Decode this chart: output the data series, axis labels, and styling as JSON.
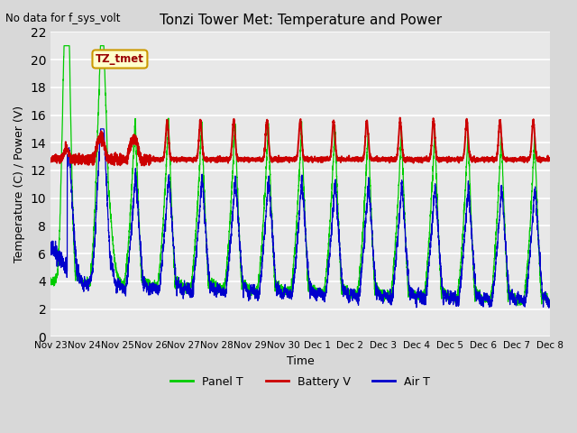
{
  "title": "Tonzi Tower Met: Temperature and Power",
  "no_data_text": "No data for f_sys_volt",
  "annotation_text": "TZ_tmet",
  "xlabel": "Time",
  "ylabel": "Temperature (C) / Power (V)",
  "ylim": [
    0,
    22
  ],
  "yticks": [
    0,
    2,
    4,
    6,
    8,
    10,
    12,
    14,
    16,
    18,
    20,
    22
  ],
  "xtick_labels": [
    "Nov 23",
    "Nov 24",
    "Nov 25",
    "Nov 26",
    "Nov 27",
    "Nov 28",
    "Nov 29",
    "Nov 30",
    "Dec 1",
    "Dec 2",
    "Dec 3",
    "Dec 4",
    "Dec 5",
    "Dec 6",
    "Dec 7",
    "Dec 8"
  ],
  "panel_color": "#00cc00",
  "battery_color": "#cc0000",
  "air_color": "#0000cc",
  "legend_labels": [
    "Panel T",
    "Battery V",
    "Air T"
  ],
  "bg_color": "#d8d8d8",
  "plot_bg_color": "#e8e8e8",
  "annotation_bg": "#ffffcc",
  "annotation_border": "#cc9900"
}
